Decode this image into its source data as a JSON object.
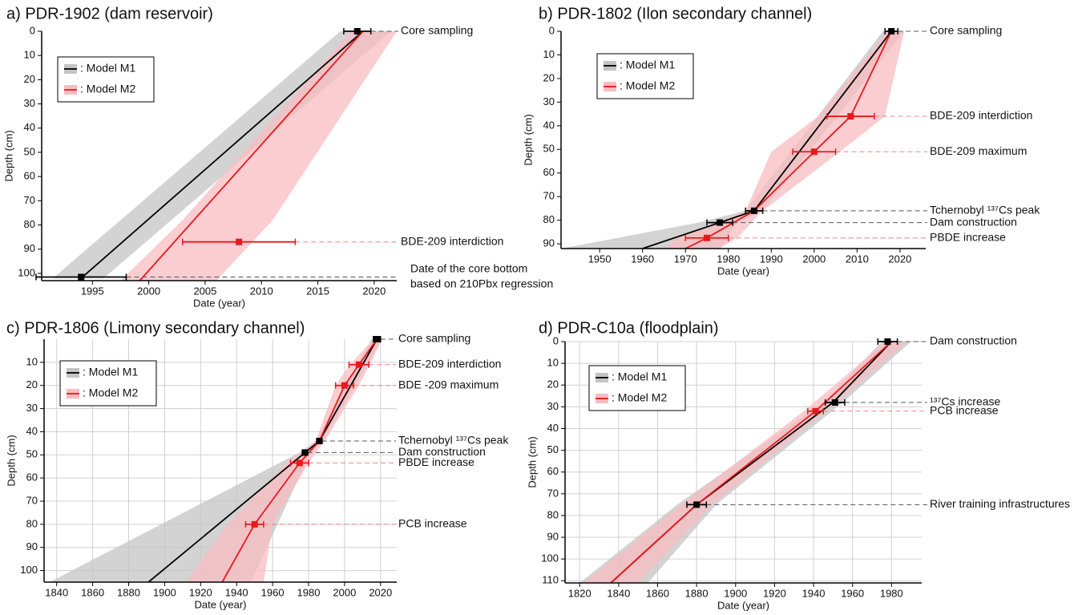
{
  "chart_data": [
    {
      "type": "line",
      "title": "a) PDR-1902 (dam reservoir)",
      "x_label": "Date (year)",
      "y_label": "Depth (cm)",
      "xlim": [
        1990.5,
        2022
      ],
      "xticks": [
        1995,
        2000,
        2005,
        2010,
        2015,
        2020
      ],
      "ylim": [
        0,
        103
      ],
      "y_inverted": true,
      "yticks": [
        0,
        10,
        20,
        30,
        40,
        50,
        60,
        70,
        80,
        90,
        100
      ],
      "grid": false,
      "legend": "upper left",
      "series": [
        {
          "name": ": Model M1",
          "color": "#000000",
          "band_color": "#c4c4c4",
          "depth": [
            0,
            102
          ],
          "date": [
            2019,
            1994
          ],
          "date_low": [
            2017,
            1991.5
          ],
          "date_high": [
            2021.5,
            1996
          ]
        },
        {
          "name": ": Model M2",
          "color": "#e8191b",
          "band_color": "#f8bcc1",
          "depth": [
            0,
            78,
            103
          ],
          "date": [
            2019,
            2004,
            1999.2
          ],
          "date_low": [
            2018,
            2003,
            1997.5
          ],
          "date_high": [
            2022,
            2011,
            2006
          ]
        }
      ],
      "events": [
        {
          "label": "Core sampling",
          "color": "#000000",
          "date": 2018.5,
          "depth": 0,
          "error": 1.2
        },
        {
          "label": "BDE-209 interdiction",
          "color": "#e8191b",
          "date": 2008,
          "depth": 87,
          "error": 5
        },
        {
          "label": [
            "Date of the core bottom",
            "based on 210Pbx regression"
          ],
          "color": "#000000",
          "date": 1994,
          "depth": 101.5,
          "error": 4
        }
      ]
    },
    {
      "type": "line",
      "title": "b) PDR-1802 (Ilon secondary channel)",
      "x_label": "Date (year)",
      "y_label": "Depth (cm)",
      "xlim": [
        1941,
        2026
      ],
      "xticks": [
        1950,
        1960,
        1970,
        1980,
        1990,
        2000,
        2010,
        2020
      ],
      "ylim": [
        0,
        92
      ],
      "y_inverted": true,
      "yticks": [
        0,
        10,
        20,
        30,
        40,
        50,
        60,
        70,
        80,
        90
      ],
      "grid": false,
      "legend": "upper left",
      "series": [
        {
          "name": ": Model M1",
          "color": "#000000",
          "band_color": "#c4c4c4",
          "depth": [
            0,
            76,
            81,
            92
          ],
          "date": [
            2018,
            1986,
            1978,
            1960
          ],
          "date_low": [
            2016,
            1984,
            1973,
            1941
          ],
          "date_high": [
            2021,
            1988,
            1982,
            1978
          ]
        },
        {
          "name": ": Model M2",
          "color": "#e8191b",
          "band_color": "#f8bcc1",
          "depth": [
            0,
            36,
            51,
            76,
            87.5,
            92
          ],
          "date": [
            2018,
            2008.5,
            2000,
            1986,
            1975,
            1970
          ],
          "date_low": [
            2017,
            2001,
            1990,
            1984,
            1968,
            1965
          ],
          "date_high": [
            2021,
            2016.5,
            2006,
            1988,
            1982,
            1978
          ]
        }
      ],
      "events": [
        {
          "label": "Core sampling",
          "color": "#000000",
          "date": 2018,
          "depth": 0,
          "error": 1.5
        },
        {
          "label": "BDE-209 interdiction",
          "color": "#e8191b",
          "date": 2008.5,
          "depth": 36,
          "error": 5.5
        },
        {
          "label": "BDE-209 maximum",
          "color": "#e8191b",
          "date": 2000,
          "depth": 51,
          "error": 5
        },
        {
          "label": "Tchernobyl ¹³⁷Cs peak",
          "color": "#000000",
          "date": 1986,
          "depth": 76,
          "error": 2
        },
        {
          "label": "Dam construction",
          "color": "#000000",
          "date": 1978,
          "depth": 81,
          "error": 3
        },
        {
          "label": "PBDE increase",
          "color": "#e8191b",
          "date": 1975,
          "depth": 87.5,
          "error": 5
        }
      ]
    },
    {
      "type": "line",
      "title": "c) PDR-1806 (Limony secondary channel)",
      "x_label": "Date (year)",
      "y_label": "Depth (cm)",
      "xlim": [
        1833,
        2029
      ],
      "xticks": [
        1840,
        1860,
        1880,
        1900,
        1920,
        1940,
        1960,
        1980,
        2000,
        2020
      ],
      "ylim": [
        0,
        105
      ],
      "y_inverted": true,
      "yticks": [
        10,
        20,
        30,
        40,
        50,
        60,
        70,
        80,
        90,
        100
      ],
      "grid": true,
      "legend": "upper left",
      "series": [
        {
          "name": ": Model M1",
          "color": "#000000",
          "band_color": "#c4c4c4",
          "depth": [
            0,
            44,
            49,
            105
          ],
          "date": [
            2018,
            1986,
            1978,
            1891
          ],
          "date_low": [
            2015,
            1984,
            1975,
            1836
          ],
          "date_high": [
            2021,
            1988,
            1981,
            1948
          ]
        },
        {
          "name": ": Model M2",
          "color": "#e8191b",
          "band_color": "#f8bcc1",
          "depth": [
            0,
            11,
            20,
            44,
            53.5,
            80,
            105
          ],
          "date": [
            2018,
            2008,
            2000,
            1986,
            1975,
            1950,
            1932
          ],
          "date_low": [
            2016,
            2003,
            1995,
            1984,
            1968,
            1935,
            1912
          ],
          "date_high": [
            2021,
            2014,
            2008,
            1989,
            1980,
            1960,
            1955
          ]
        }
      ],
      "events": [
        {
          "label": "Core sampling",
          "color": "#000000",
          "date": 2018,
          "depth": 0,
          "error": 2
        },
        {
          "label": "BDE-209 interdiction",
          "color": "#e8191b",
          "date": 2008,
          "depth": 11,
          "error": 5.5
        },
        {
          "label": "BDE -209 maximum",
          "color": "#e8191b",
          "date": 2000,
          "depth": 20,
          "error": 5
        },
        {
          "label": "Tchernobyl ¹³⁷Cs peak",
          "color": "#000000",
          "date": 1986,
          "depth": 44,
          "error": 1.5
        },
        {
          "label": "Dam construction",
          "color": "#000000",
          "date": 1978,
          "depth": 49,
          "error": 1.5
        },
        {
          "label": "PBDE increase",
          "color": "#e8191b",
          "date": 1975,
          "depth": 53.5,
          "error": 5
        },
        {
          "label": "PCB increase",
          "color": "#e8191b",
          "date": 1950,
          "depth": 80,
          "error": 5
        }
      ]
    },
    {
      "type": "line",
      "title": "d) PDR-C10a (floodplain)",
      "x_label": "Date (year)",
      "y_label": "Depth (cm)",
      "xlim": [
        1812.5,
        1995.5
      ],
      "xticks": [
        1820,
        1840,
        1860,
        1880,
        1900,
        1920,
        1940,
        1960,
        1980
      ],
      "ylim": [
        0,
        111
      ],
      "y_inverted": true,
      "yticks": [
        0,
        10,
        20,
        30,
        40,
        50,
        60,
        70,
        80,
        90,
        100,
        110
      ],
      "grid": true,
      "legend": "upper left",
      "series": [
        {
          "name": ": Model M1",
          "color": "#000000",
          "band_color": "#c4c4c4",
          "depth": [
            0,
            28,
            75,
            111
          ],
          "date": [
            1980,
            1950,
            1880,
            1836
          ],
          "date_low": [
            1975,
            1945,
            1870,
            1820
          ],
          "date_high": [
            1990,
            1955,
            1890,
            1855
          ]
        },
        {
          "name": ": Model M2",
          "color": "#e8191b",
          "band_color": "#f8bcc1",
          "depth": [
            0,
            32,
            75,
            111
          ],
          "date": [
            1980,
            1941,
            1880,
            1836
          ],
          "date_low": [
            1977,
            1935,
            1872,
            1822
          ],
          "date_high": [
            1988,
            1946,
            1888,
            1850
          ]
        }
      ],
      "events": [
        {
          "label": "Dam construction",
          "color": "#000000",
          "date": 1978,
          "depth": 0,
          "error": 5
        },
        {
          "label": "¹³⁷Cs increase",
          "color": "#000000",
          "date": 1951,
          "depth": 28,
          "error": 5
        },
        {
          "label": "PCB increase",
          "color": "#e8191b",
          "date": 1941,
          "depth": 32,
          "error": 4
        },
        {
          "label": "River training infrastructures",
          "color": "#000000",
          "date": 1880,
          "depth": 75,
          "error": 5
        }
      ]
    }
  ]
}
